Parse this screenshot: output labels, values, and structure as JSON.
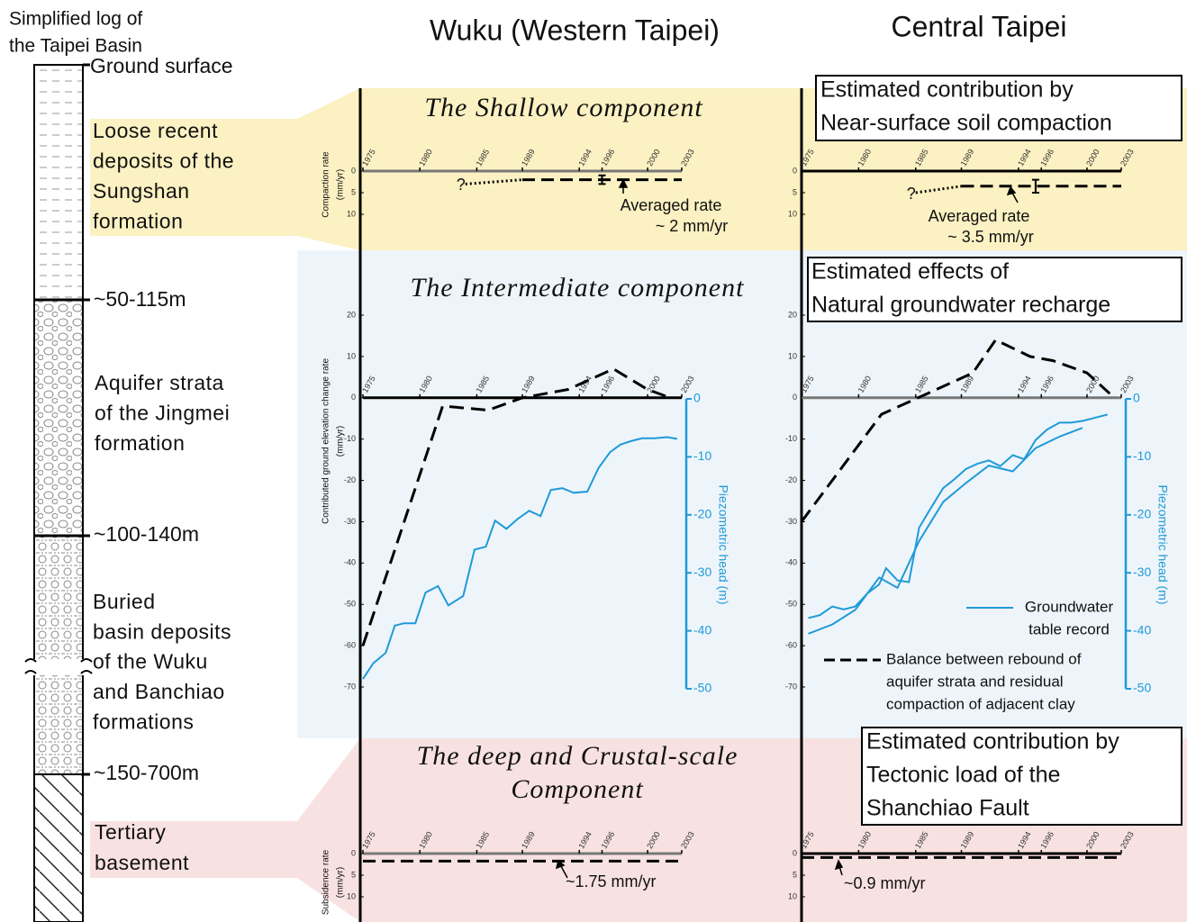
{
  "log": {
    "title": [
      "Simplified log of",
      "the Taipei Basin"
    ],
    "ground": "Ground surface",
    "depths": [
      "~50-115m",
      "~100-140m",
      "~150-700m"
    ],
    "formations": [
      [
        "Loose recent",
        "deposits of the",
        "Sungshan",
        "formation"
      ],
      [
        "Aquifer strata",
        "of the Jingmei",
        "formation"
      ],
      [
        "Buried",
        "basin deposits",
        "of the Wuku",
        "and Banchiao",
        "formations"
      ],
      [
        "Tertiary",
        "basement"
      ]
    ]
  },
  "columns": [
    "Wuku (Western Taipei)",
    "Central Taipei"
  ],
  "components": {
    "shallow": [
      "The Shallow component"
    ],
    "intermediate": [
      "The Intermediate component"
    ],
    "deep": [
      "The deep and Crustal-scale",
      "Component"
    ]
  },
  "boxes": {
    "shallow": [
      "Estimated contribution by",
      "Near-surface soil compaction"
    ],
    "intermediate": [
      "Estimated effects of",
      "Natural groundwater recharge"
    ],
    "deep": [
      "Estimated contribution by",
      "Tectonic load of the",
      "Shanchiao Fault"
    ]
  },
  "years": [
    1975,
    1980,
    1985,
    1989,
    1994,
    1996,
    2000,
    2003
  ],
  "xlim": [
    1975,
    2003
  ],
  "axes": {
    "shallow": {
      "ylabel": [
        "Compaction rate",
        "(mm/yr)"
      ],
      "ylim": [
        0,
        10
      ],
      "yticks": [
        0,
        5,
        10
      ]
    },
    "intermediate": {
      "ylabel": [
        "Contributed ground elevation change rate",
        "(mm/yr)"
      ],
      "ylim": [
        -70,
        20
      ],
      "yticks": [
        20,
        10,
        0,
        -10,
        -20,
        -30,
        -40,
        -50,
        -60,
        -70
      ],
      "y2label": "Piezometric head (m)",
      "y2lim": [
        -50,
        0
      ],
      "y2ticks": [
        0,
        -10,
        -20,
        -30,
        -40,
        -50
      ]
    },
    "deep": {
      "ylabel": [
        "Subsidence rate",
        "(mm/yr)"
      ],
      "ylim": [
        0,
        10
      ],
      "yticks": [
        0,
        5,
        10
      ]
    }
  },
  "legend": {
    "head": [
      "Groundwater",
      "table record"
    ],
    "rebound": [
      "Balance between rebound of",
      "aquifer strata and residual",
      "compaction of adjacent clay"
    ]
  },
  "panels": [
    {
      "shallow": {
        "question": "?",
        "dotted": {
          "x": [
            1984,
            1989
          ],
          "y": [
            3,
            2
          ]
        },
        "dashed": {
          "x": [
            1989,
            2003
          ],
          "y": [
            2,
            2
          ]
        },
        "errorbar": {
          "x": 1996,
          "y": 2,
          "err": 1
        },
        "note": "Averaged rate",
        "rate": 2,
        "rate_label": "~ 2 mm/yr"
      },
      "intermediate": {
        "rebound": {
          "x": [
            1975,
            1982,
            1986,
            1989,
            1993,
            1997,
            2000,
            2002
          ],
          "y": [
            -60,
            -2,
            -3,
            0,
            2,
            7,
            2,
            0
          ]
        },
        "heads": [
          {
            "x": [
              1975.0,
              1975.9,
              1977.0,
              1977.8,
              1978.6,
              1979.6,
              1980.5,
              1981.6,
              1982.5,
              1983.8,
              1984.8,
              1985.8,
              1986.6,
              1987.6,
              1988.6,
              1989.6,
              1990.6,
              1991.5,
              1992.5,
              1993.5,
              1994.7,
              1995.7,
              1996.7,
              1997.6,
              1998.5,
              1999.5,
              2000.6,
              2001.7,
              2002.6
            ],
            "y": [
              -48.3,
              -45.6,
              -43.8,
              -39.1,
              -38.7,
              -38.7,
              -33.4,
              -32.3,
              -35.6,
              -34.0,
              -26.0,
              -25.5,
              -21.0,
              -22.4,
              -20.7,
              -19.3,
              -20.2,
              -15.7,
              -15.4,
              -16.2,
              -16.0,
              -11.9,
              -9.2,
              -7.9,
              -7.3,
              -6.8,
              -6.8,
              -6.6,
              -6.9
            ]
          }
        ]
      },
      "deep": {
        "rate": 1.75,
        "rate_label": "~1.75 mm/yr"
      }
    },
    {
      "shallow": {
        "question": "?",
        "dotted": {
          "x": [
            1985,
            1989
          ],
          "y": [
            5,
            3.5
          ]
        },
        "dashed": {
          "x": [
            1989,
            2003
          ],
          "y": [
            3.5,
            3.5
          ]
        },
        "errorbar": {
          "x": 1995.5,
          "y": 3.5,
          "err": 1.5
        },
        "note": "Averaged rate",
        "rate": 3.5,
        "rate_label": "~ 3.5 mm/yr"
      },
      "intermediate": {
        "rebound": {
          "x": [
            1975,
            1982,
            1986,
            1990,
            1992,
            1995,
            1997,
            2000,
            2002
          ],
          "y": [
            -30,
            -4,
            1,
            6,
            14,
            10,
            9,
            6,
            1
          ]
        },
        "heads": [
          {
            "x": [
              1975.6,
              1976.6,
              1977.7,
              1978.7,
              1979.7,
              1980.8,
              1981.8,
              1982.4,
              1983.4,
              1984.4,
              1985.3,
              1986.3,
              1987.4,
              1988.3,
              1989.4,
              1990.4,
              1991.4,
              1992.4,
              1993.5,
              1994.5,
              1995.5,
              1996.5,
              1997.6,
              1998.6,
              1999.6,
              2000.6,
              2001.8
            ],
            "y": [
              -37.8,
              -37.3,
              -35.8,
              -36.3,
              -35.8,
              -33.5,
              -32.0,
              -29.2,
              -31.3,
              -31.6,
              -22.2,
              -18.9,
              -15.4,
              -14.0,
              -12.1,
              -11.2,
              -10.6,
              -11.6,
              -9.7,
              -10.4,
              -7.1,
              -5.3,
              -4.1,
              -4.1,
              -3.8,
              -3.3,
              -2.7
            ]
          },
          {
            "x": [
              1975.6,
              1977.7,
              1979.7,
              1981.8,
              1983.4,
              1985.3,
              1987.4,
              1989.4,
              1991.4,
              1993.5,
              1995.5,
              1997.6,
              1999.6
            ],
            "y": [
              -40.5,
              -38.9,
              -36.4,
              -30.8,
              -32.6,
              -24.5,
              -17.8,
              -14.5,
              -11.5,
              -12.5,
              -8.5,
              -6.5,
              -5.0
            ]
          }
        ]
      },
      "deep": {
        "rate": 0.9,
        "rate_label": "~0.9 mm/yr"
      }
    }
  ]
}
